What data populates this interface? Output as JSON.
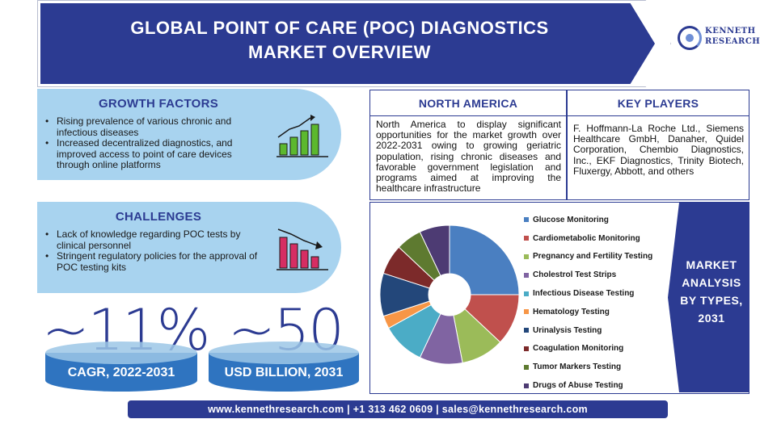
{
  "header": {
    "title_line1": "GLOBAL POINT OF CARE (POC) DIAGNOSTICS",
    "title_line2": "MARKET OVERVIEW"
  },
  "logo": {
    "line1": "KENNETH",
    "line2": "RESEARCH",
    "icon": "kenneth-research-logo-icon"
  },
  "growth_factors": {
    "heading": "GROWTH FACTORS",
    "items": [
      "Rising prevalence of various chronic and infectious diseases",
      "Increased decentralized diagnostics, and improved access to point of care devices through online platforms"
    ],
    "icon": "rising-bar-chart-icon",
    "icon_color": "#5cb82e"
  },
  "challenges": {
    "heading": "CHALLENGES",
    "items": [
      "Lack of knowledge regarding POC tests by clinical personnel",
      "Stringent regulatory policies for the approval of POC testing kits"
    ],
    "icon": "falling-bar-chart-icon",
    "icon_color": "#d62e63"
  },
  "stats": [
    {
      "value": "~11%",
      "label": "CAGR, 2022-2031"
    },
    {
      "value": "~50",
      "label": "USD BILLION, 2031"
    }
  ],
  "north_america": {
    "heading": "NORTH AMERICA",
    "text": "North America to display significant opportunities for the market growth over 2022-2031 owing to growing geriatric population, rising chronic diseases and favorable government legislation and programs aimed at improving the healthcare infrastructure"
  },
  "key_players": {
    "heading": "KEY PLAYERS",
    "text": "F. Hoffmann-La Roche Ltd., Siemens Healthcare GmbH, Danaher, Quidel Corporation, Chembio Diagnostics, Inc., EKF Diagnostics, Trinity Biotech, Fluxergy, Abbott, and others"
  },
  "market_types": {
    "banner_line1": "MARKET",
    "banner_line2": "ANALYSIS",
    "banner_line3": "BY TYPES,",
    "banner_line4": "2031"
  },
  "chart_data": {
    "type": "pie",
    "donut": true,
    "legend_placement": "right",
    "categories": [
      "Glucose Monitoring",
      "Cardiometabolic Monitoring",
      "Pregnancy and Fertility Testing",
      "Cholestrol Test Strips",
      "Infectious Disease Testing",
      "Hematology Testing",
      "Urinalysis Testing",
      "Coagulation Monitoring",
      "Tumor Markers Testing",
      "Drugs of Abuse Testing"
    ],
    "values": [
      25,
      12,
      10,
      10,
      10,
      3,
      10,
      7,
      6,
      7
    ],
    "colors": [
      "#4a7fc1",
      "#c0504d",
      "#9bbb59",
      "#8064a2",
      "#4bacc6",
      "#f79646",
      "#23477a",
      "#7c2a2a",
      "#5e7a30",
      "#4d3b73"
    ]
  },
  "footer": {
    "text": "www.kennethresearch.com | +1 313 462 0609 | sales@kennethresearch.com"
  }
}
